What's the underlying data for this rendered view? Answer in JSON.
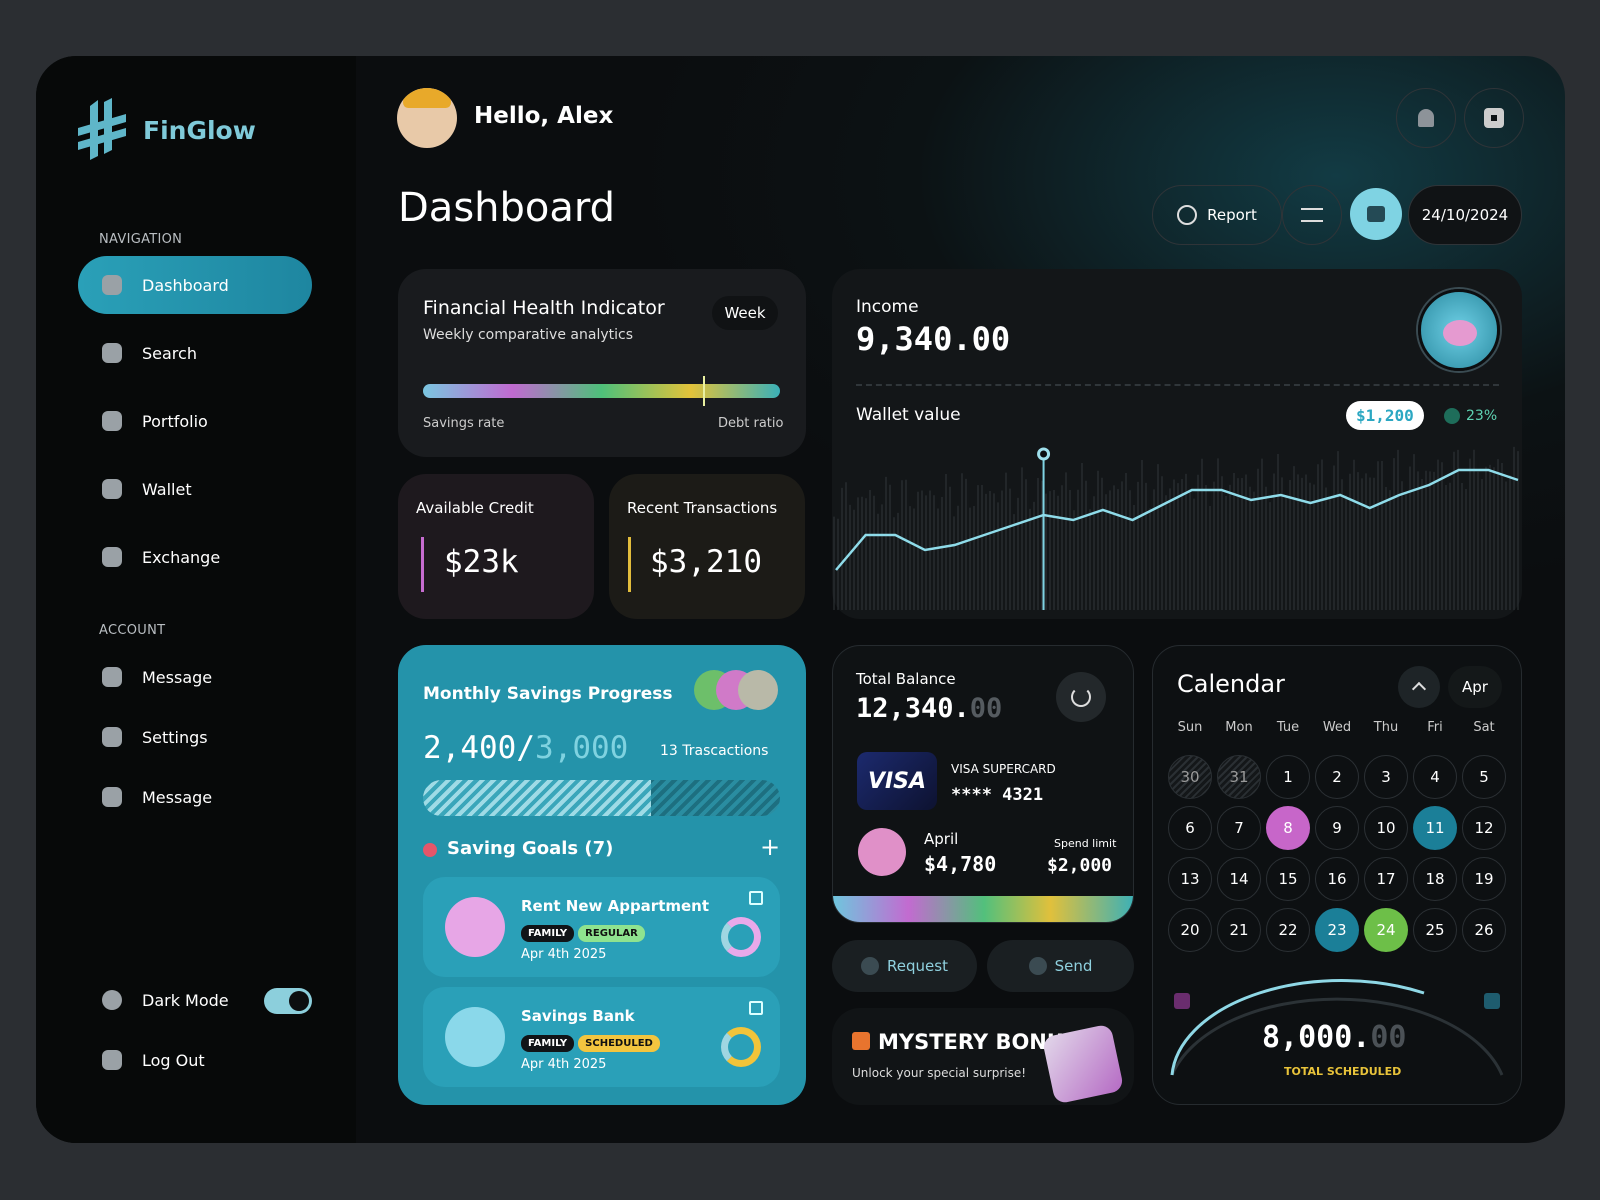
{
  "sidebar": {
    "brand": "FinGlow",
    "nav_title": "NAVIGATION",
    "nav": [
      "Dashboard",
      "Search",
      "Portfolio",
      "Wallet",
      "Exchange"
    ],
    "account_title": "ACCOUNT",
    "account": [
      "Message",
      "Settings",
      "Message"
    ],
    "dark_mode": "Dark Mode",
    "logout": "Log Out"
  },
  "header": {
    "greeting": "Hello, Alex",
    "title": "Dashboard",
    "report": "Report",
    "date": "24/10/2024"
  },
  "health": {
    "title": "Financial Health Indicator",
    "subtitle": "Weekly comparative analytics",
    "period": "Week",
    "left_label": "Savings rate",
    "right_label": "Debt ratio"
  },
  "credit": {
    "label": "Available Credit",
    "amount": "$23k"
  },
  "transactions": {
    "label": "Recent Transactions",
    "amount": "$3,210"
  },
  "savings": {
    "title": "Monthly Savings Progress",
    "saved": "2,400",
    "separator": "/",
    "target": "3,000",
    "count": "13 Trascactions",
    "goals_title": "Saving Goals (7)",
    "goals": [
      {
        "name": "Rent New Appartment",
        "tags": [
          {
            "label": "FAMILY",
            "color": "#111417"
          },
          {
            "label": "REGULAR",
            "color": "#8fe38f"
          }
        ],
        "date": "Apr 4th 2025"
      },
      {
        "name": "Savings Bank",
        "tags": [
          {
            "label": "FAMILY",
            "color": "#111417"
          },
          {
            "label": "SCHEDULED",
            "color": "#f3c53f"
          }
        ],
        "date": "Apr 4th 2025"
      }
    ]
  },
  "income": {
    "label": "Income",
    "amount": "9,340.00",
    "wallet_label": "Wallet value",
    "wallet_badge": "$1,200",
    "change": "23%",
    "chart": {
      "values": [
        35,
        70,
        70,
        55,
        60,
        70,
        80,
        90,
        85,
        95,
        85,
        100,
        115,
        115,
        105,
        110,
        102,
        110,
        97,
        110,
        120,
        135,
        135,
        125
      ]
    }
  },
  "balance": {
    "label": "Total Balance",
    "amount": "12,340.",
    "decimals": "00",
    "card_brand": "VISA",
    "card_name": "VISA SUPERCARD",
    "card_number": "**** 4321",
    "month": "April",
    "month_amount": "$4,780",
    "limit_label": "Spend limit",
    "limit": "$2,000",
    "request": "Request",
    "send": "Send"
  },
  "bonus": {
    "title": "MYSTERY BONUS",
    "subtitle": "Unlock your special surprise!"
  },
  "calendar": {
    "title": "Calendar",
    "month": "Apr",
    "weekdays": [
      "Sun",
      "Mon",
      "Tue",
      "Wed",
      "Thu",
      "Fri",
      "Sat"
    ],
    "days": [
      {
        "label": "30",
        "muted": true
      },
      {
        "label": "31",
        "muted": true
      },
      {
        "label": "1"
      },
      {
        "label": "2"
      },
      {
        "label": "3"
      },
      {
        "label": "4"
      },
      {
        "label": "5"
      },
      {
        "label": "6"
      },
      {
        "label": "7"
      },
      {
        "label": "8",
        "color": "#c766c9"
      },
      {
        "label": "9"
      },
      {
        "label": "10"
      },
      {
        "label": "11",
        "color": "#1b7f98"
      },
      {
        "label": "12"
      },
      {
        "label": "13"
      },
      {
        "label": "14"
      },
      {
        "label": "15"
      },
      {
        "label": "16"
      },
      {
        "label": "17"
      },
      {
        "label": "18"
      },
      {
        "label": "19"
      },
      {
        "label": "20"
      },
      {
        "label": "21"
      },
      {
        "label": "22"
      },
      {
        "label": "23",
        "color": "#1b7f98"
      },
      {
        "label": "24",
        "color": "#6dbf48"
      },
      {
        "label": "25"
      },
      {
        "label": "26"
      }
    ],
    "scheduled": "8,000.",
    "scheduled_decimals": "00",
    "scheduled_label": "TOTAL SCHEDULED"
  }
}
